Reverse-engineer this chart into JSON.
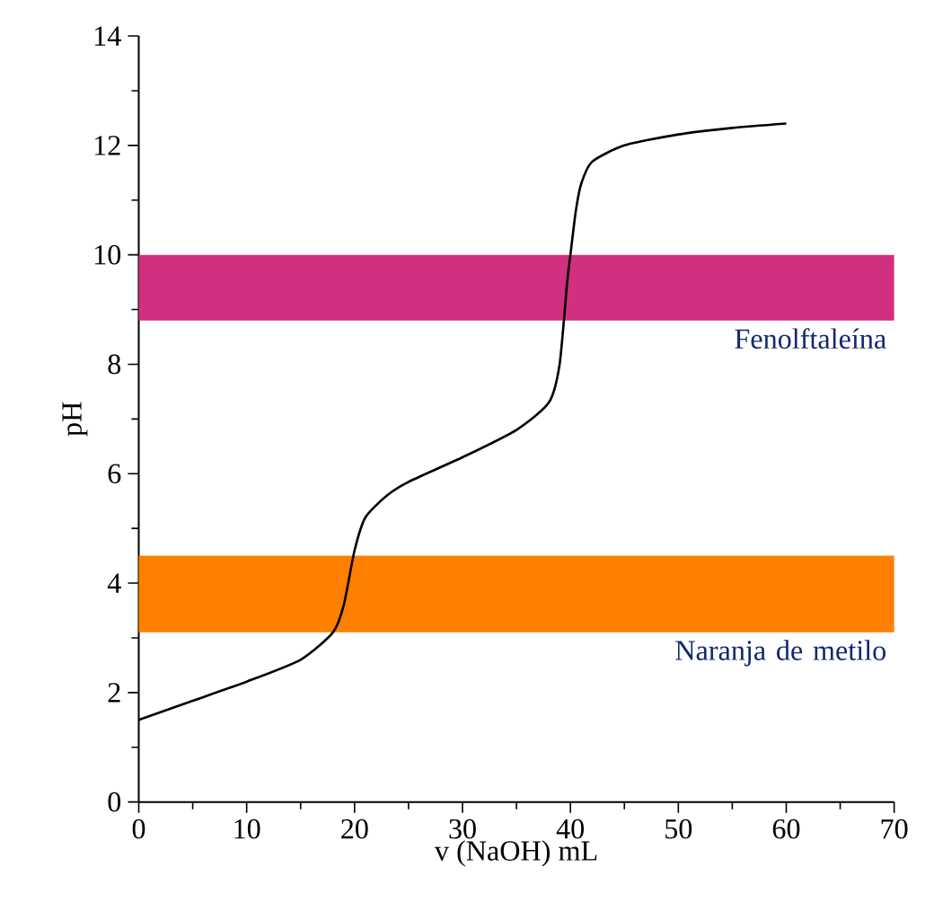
{
  "chart_data": {
    "type": "line",
    "xlabel": "v (NaOH) mL",
    "ylabel": "pH",
    "xlim": [
      0,
      70
    ],
    "xticks": [
      0,
      10,
      20,
      30,
      40,
      50,
      60,
      70
    ],
    "ylim": [
      0,
      14
    ],
    "yticks": [
      0,
      2,
      4,
      6,
      8,
      10,
      12,
      14
    ],
    "series": [
      {
        "color": "#000000",
        "x": [
          0,
          5,
          10,
          15,
          18,
          19,
          20,
          21,
          23,
          25,
          30,
          35,
          38,
          39,
          39.7,
          40,
          40.5,
          41,
          42,
          45,
          50,
          55,
          60
        ],
        "values": [
          1.5,
          1.85,
          2.2,
          2.6,
          3.1,
          3.6,
          4.6,
          5.2,
          5.6,
          5.85,
          6.3,
          6.8,
          7.3,
          8,
          9.5,
          10,
          10.8,
          11.3,
          11.7,
          12,
          12.2,
          12.32,
          12.4
        ]
      }
    ],
    "bands": [
      {
        "axis": "y",
        "from": 3.1,
        "to": 4.5,
        "label": "Naranja de metilo",
        "color": "#ff8000"
      },
      {
        "axis": "y",
        "from": 8.8,
        "to": 10,
        "label": "Fenolftaleína",
        "color": "#d0307e"
      }
    ]
  }
}
